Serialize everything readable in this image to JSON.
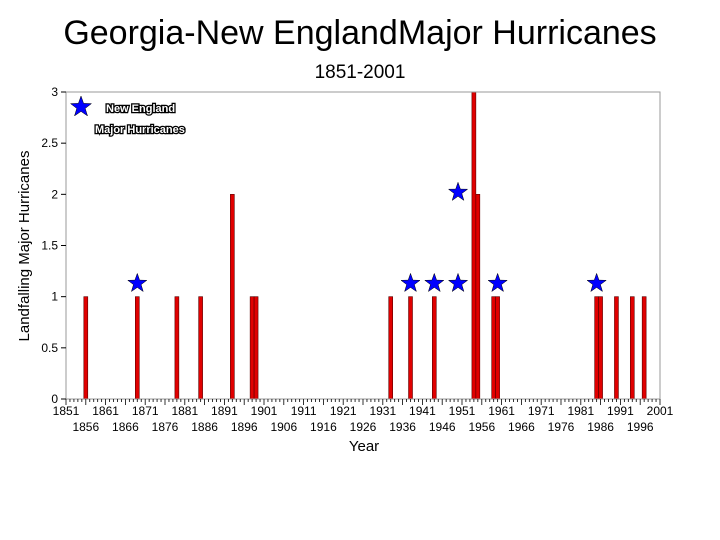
{
  "page": {
    "title": "Georgia-New EnglandMajor Hurricanes",
    "subtitle": "1851-2001"
  },
  "legend": {
    "line1": "New England",
    "line2": "Major Hurricanes",
    "icon": "star-icon",
    "color": "#0000ff"
  },
  "chart_data": {
    "type": "bar",
    "title": "Georgia-New EnglandMajor Hurricanes",
    "subtitle": "1851-2001",
    "xlabel": "Year",
    "ylabel": "Landfalling Major Hurricanes",
    "xlim": [
      1851,
      2001
    ],
    "ylim": [
      0,
      3
    ],
    "yticks": [
      0,
      0.5,
      1,
      1.5,
      2,
      2.5,
      3
    ],
    "ytick_labels": [
      "0",
      "0.5",
      "1",
      "1.5",
      "2",
      "2.5",
      "3"
    ],
    "xticks_top": [
      1851,
      1861,
      1871,
      1881,
      1891,
      1901,
      1911,
      1921,
      1931,
      1941,
      1951,
      1961,
      1971,
      1981,
      1991,
      2001
    ],
    "xticks_bottom": [
      1856,
      1866,
      1876,
      1886,
      1896,
      1906,
      1916,
      1926,
      1936,
      1946,
      1956,
      1966,
      1976,
      1986,
      1996
    ],
    "bar_color": "#e00000",
    "bars": [
      {
        "year": 1856,
        "value": 1
      },
      {
        "year": 1869,
        "value": 1
      },
      {
        "year": 1879,
        "value": 1
      },
      {
        "year": 1885,
        "value": 1
      },
      {
        "year": 1893,
        "value": 2
      },
      {
        "year": 1898,
        "value": 1
      },
      {
        "year": 1899,
        "value": 1
      },
      {
        "year": 1933,
        "value": 1
      },
      {
        "year": 1938,
        "value": 1
      },
      {
        "year": 1944,
        "value": 1
      },
      {
        "year": 1954,
        "value": 3
      },
      {
        "year": 1955,
        "value": 2
      },
      {
        "year": 1959,
        "value": 1
      },
      {
        "year": 1960,
        "value": 1
      },
      {
        "year": 1985,
        "value": 1
      },
      {
        "year": 1986,
        "value": 1
      },
      {
        "year": 1990,
        "value": 1
      },
      {
        "year": 1994,
        "value": 1
      },
      {
        "year": 1997,
        "value": 1
      }
    ],
    "markers": {
      "label": "New England Major Hurricanes",
      "color": "#0000ff",
      "points": [
        {
          "year": 1869,
          "value": 1.13
        },
        {
          "year": 1938,
          "value": 1.13
        },
        {
          "year": 1944,
          "value": 1.13
        },
        {
          "year": 1950,
          "value": 1.13
        },
        {
          "year": 1950,
          "value": 2.02
        },
        {
          "year": 1960,
          "value": 1.13
        },
        {
          "year": 1985,
          "value": 1.13
        }
      ]
    },
    "legend_position": "top-left",
    "grid": false
  }
}
